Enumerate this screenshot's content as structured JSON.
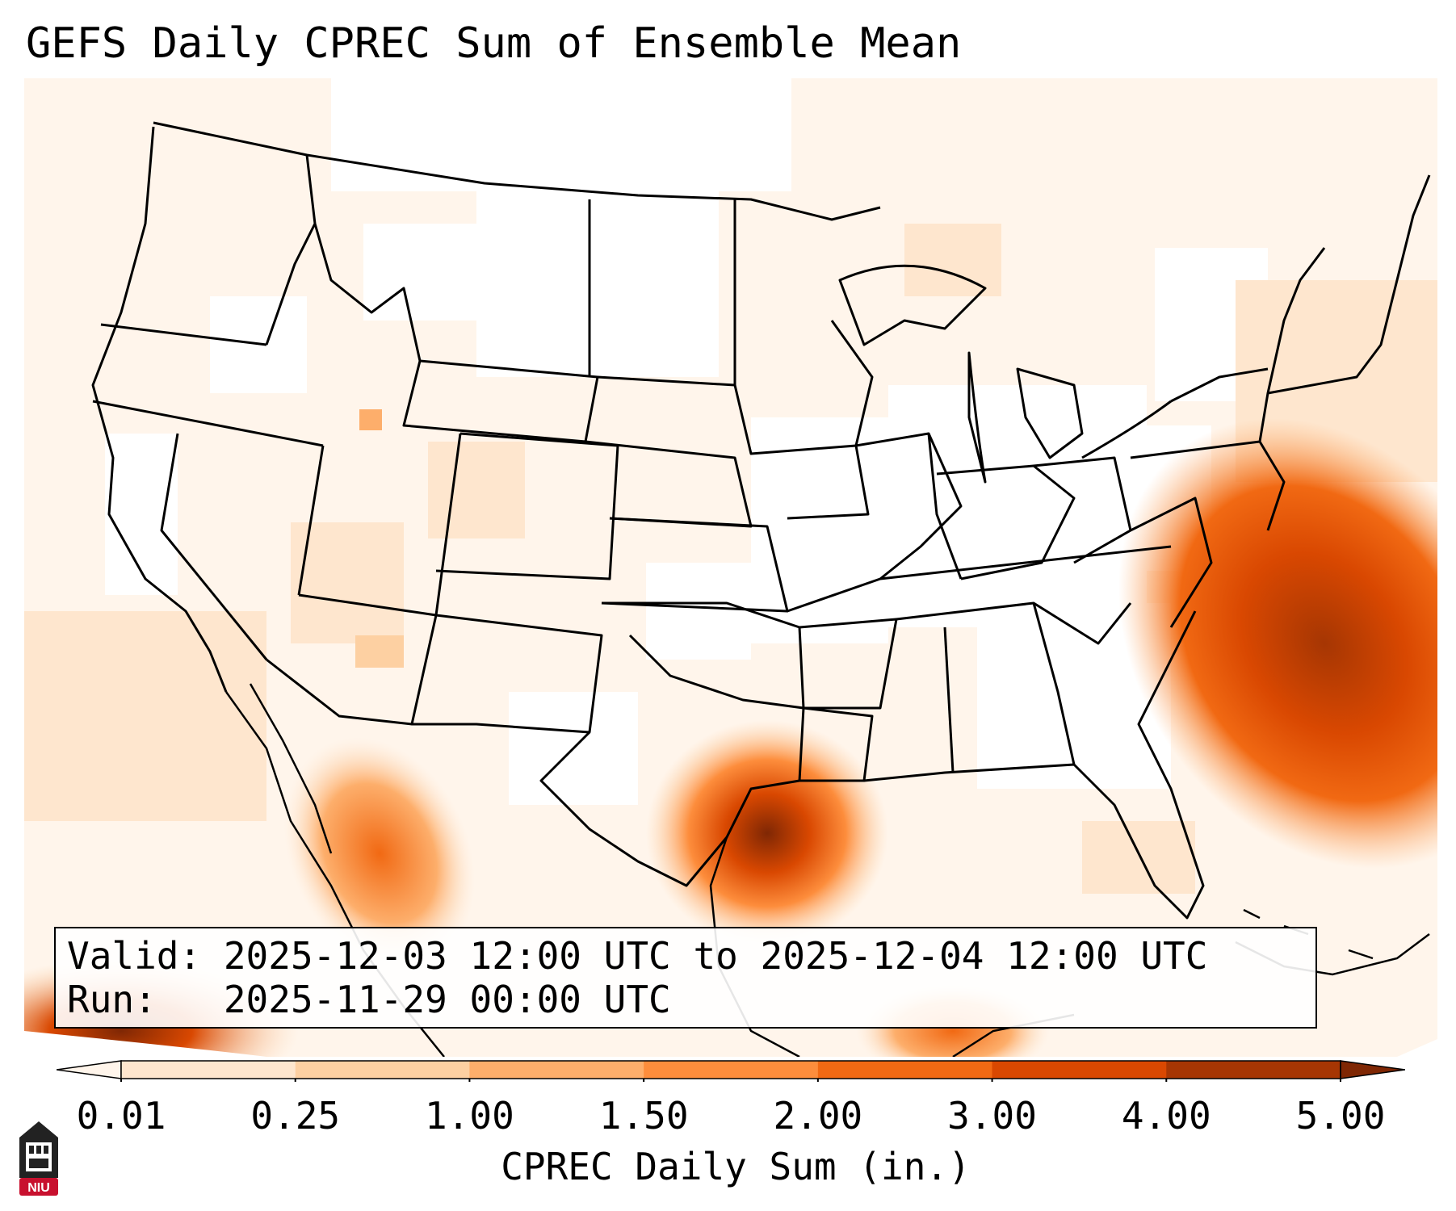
{
  "title": "GEFS Daily CPREC Sum of Ensemble Mean",
  "info": {
    "valid": "Valid: 2025-12-03 12:00 UTC to 2025-12-04 12:00 UTC",
    "run": "Run:   2025-11-29 00:00 UTC"
  },
  "colorbar": {
    "label": "CPREC Daily Sum (in.)",
    "ticks": [
      "0.01",
      "0.25",
      "1.00",
      "1.50",
      "2.00",
      "3.00",
      "4.00",
      "5.00"
    ],
    "colors": [
      "#fff5eb",
      "#fee6ce",
      "#fdd0a2",
      "#fdae6b",
      "#fd8d3c",
      "#f16913",
      "#d94801",
      "#a63603",
      "#7f2704"
    ],
    "extend": "both"
  },
  "legend_placement": "bottom",
  "logo": {
    "text": "NIU",
    "color": "#c8102e"
  },
  "map": {
    "region": "Contiguous United States",
    "projection": "Lambert conformal",
    "features": [
      "state-boundaries",
      "coastlines",
      "great-lakes"
    ],
    "max_precip_areas": [
      "Texas Gulf Coast",
      "Western Atlantic offshore",
      "Mexico Pacific coast"
    ]
  }
}
